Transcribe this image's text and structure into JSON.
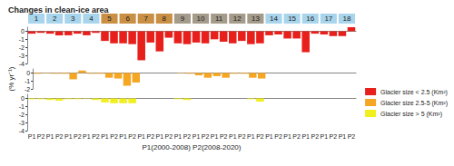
{
  "chart_data": {
    "type": "bar",
    "title": "Changes in clean-ice area",
    "y_label": "(% yr⁻¹)",
    "x_label": "P1(2000-2008) P2(2008-2020)",
    "legend": "right",
    "regions": [
      {
        "label": "1",
        "color": "#a8d5ec"
      },
      {
        "label": "2",
        "color": "#a8d5ec"
      },
      {
        "label": "3",
        "color": "#a8d5ec"
      },
      {
        "label": "4",
        "color": "#a8d5ec"
      },
      {
        "label": "5",
        "color": "#c98f45"
      },
      {
        "label": "6",
        "color": "#c98f45"
      },
      {
        "label": "7",
        "color": "#c98f45"
      },
      {
        "label": "8",
        "color": "#c98f45"
      },
      {
        "label": "9",
        "color": "#a49b8b"
      },
      {
        "label": "10",
        "color": "#a49b8b"
      },
      {
        "label": "11",
        "color": "#a49b8b"
      },
      {
        "label": "12",
        "color": "#a49b8b"
      },
      {
        "label": "13",
        "color": "#a49b8b"
      },
      {
        "label": "14",
        "color": "#a8d5ec"
      },
      {
        "label": "15",
        "color": "#a8d5ec"
      },
      {
        "label": "16",
        "color": "#a8d5ec"
      },
      {
        "label": "17",
        "color": "#a8d5ec"
      },
      {
        "label": "18",
        "color": "#a8d5ec"
      }
    ],
    "categories": [
      "P1",
      "P2",
      "P1",
      "P2",
      "P1",
      "P2",
      "P1",
      "P2",
      "P1",
      "P2",
      "P1",
      "P2",
      "P1",
      "P2",
      "P1",
      "P2",
      "P1",
      "P2",
      "P1",
      "P2",
      "P1",
      "P2",
      "P1",
      "P2",
      "P1",
      "P2",
      "P1",
      "P2",
      "P1",
      "P2",
      "P1",
      "P2",
      "P1",
      "P2",
      "P1",
      "P2"
    ],
    "series": [
      {
        "name": "Glacier size < 2.5 (Km²)",
        "color": "#e8201c",
        "ylim": [
          -4,
          0.5
        ],
        "yticks": [
          0,
          -1,
          -2,
          -3,
          -4
        ],
        "values": [
          -0.3,
          -0.2,
          -0.3,
          -0.5,
          -0.5,
          -0.3,
          -0.5,
          -0.2,
          -1.2,
          -1.5,
          -1.5,
          -1.6,
          -3.6,
          -1.4,
          -2.5,
          -0.8,
          -1.5,
          -1.6,
          -1.4,
          -1.5,
          -1.0,
          -1.3,
          -1.5,
          -1.2,
          -1.6,
          -1.5,
          -0.5,
          -0.4,
          -0.9,
          -0.9,
          -2.6,
          -0.3,
          -0.4,
          -0.6,
          -0.6,
          0.5
        ]
      },
      {
        "name": "Glacier size 2.5-5 (Km²)",
        "color": "#f5a623",
        "ylim": [
          -2,
          0.5
        ],
        "yticks": [
          0,
          -1,
          -2
        ],
        "values": [
          -0.1,
          -0.05,
          -0.1,
          -0.1,
          -0.8,
          0.3,
          -0.1,
          -0.1,
          -0.6,
          -0.7,
          -1.6,
          -1.2,
          null,
          null,
          null,
          null,
          -0.05,
          -0.1,
          -0.3,
          -0.6,
          -0.4,
          -0.6,
          -0.1,
          -0.1,
          -0.6,
          -0.7,
          null,
          null,
          null,
          null,
          null,
          null,
          null,
          null,
          null,
          null
        ]
      },
      {
        "name": "Glacier size > 5 (Km²)",
        "color": "#f2ef1e",
        "ylim": [
          -4,
          0.5
        ],
        "yticks": [
          0,
          -1,
          -2,
          -3,
          -4
        ],
        "values": [
          -0.1,
          -0.1,
          -0.2,
          -0.3,
          -0.1,
          -0.1,
          -0.05,
          -0.2,
          -0.5,
          -0.6,
          -0.6,
          -0.6,
          null,
          null,
          null,
          null,
          -0.1,
          -0.2,
          null,
          null,
          null,
          null,
          null,
          null,
          -0.1,
          -0.4,
          null,
          null,
          null,
          null,
          null,
          null,
          null,
          null,
          null,
          null
        ]
      }
    ]
  }
}
